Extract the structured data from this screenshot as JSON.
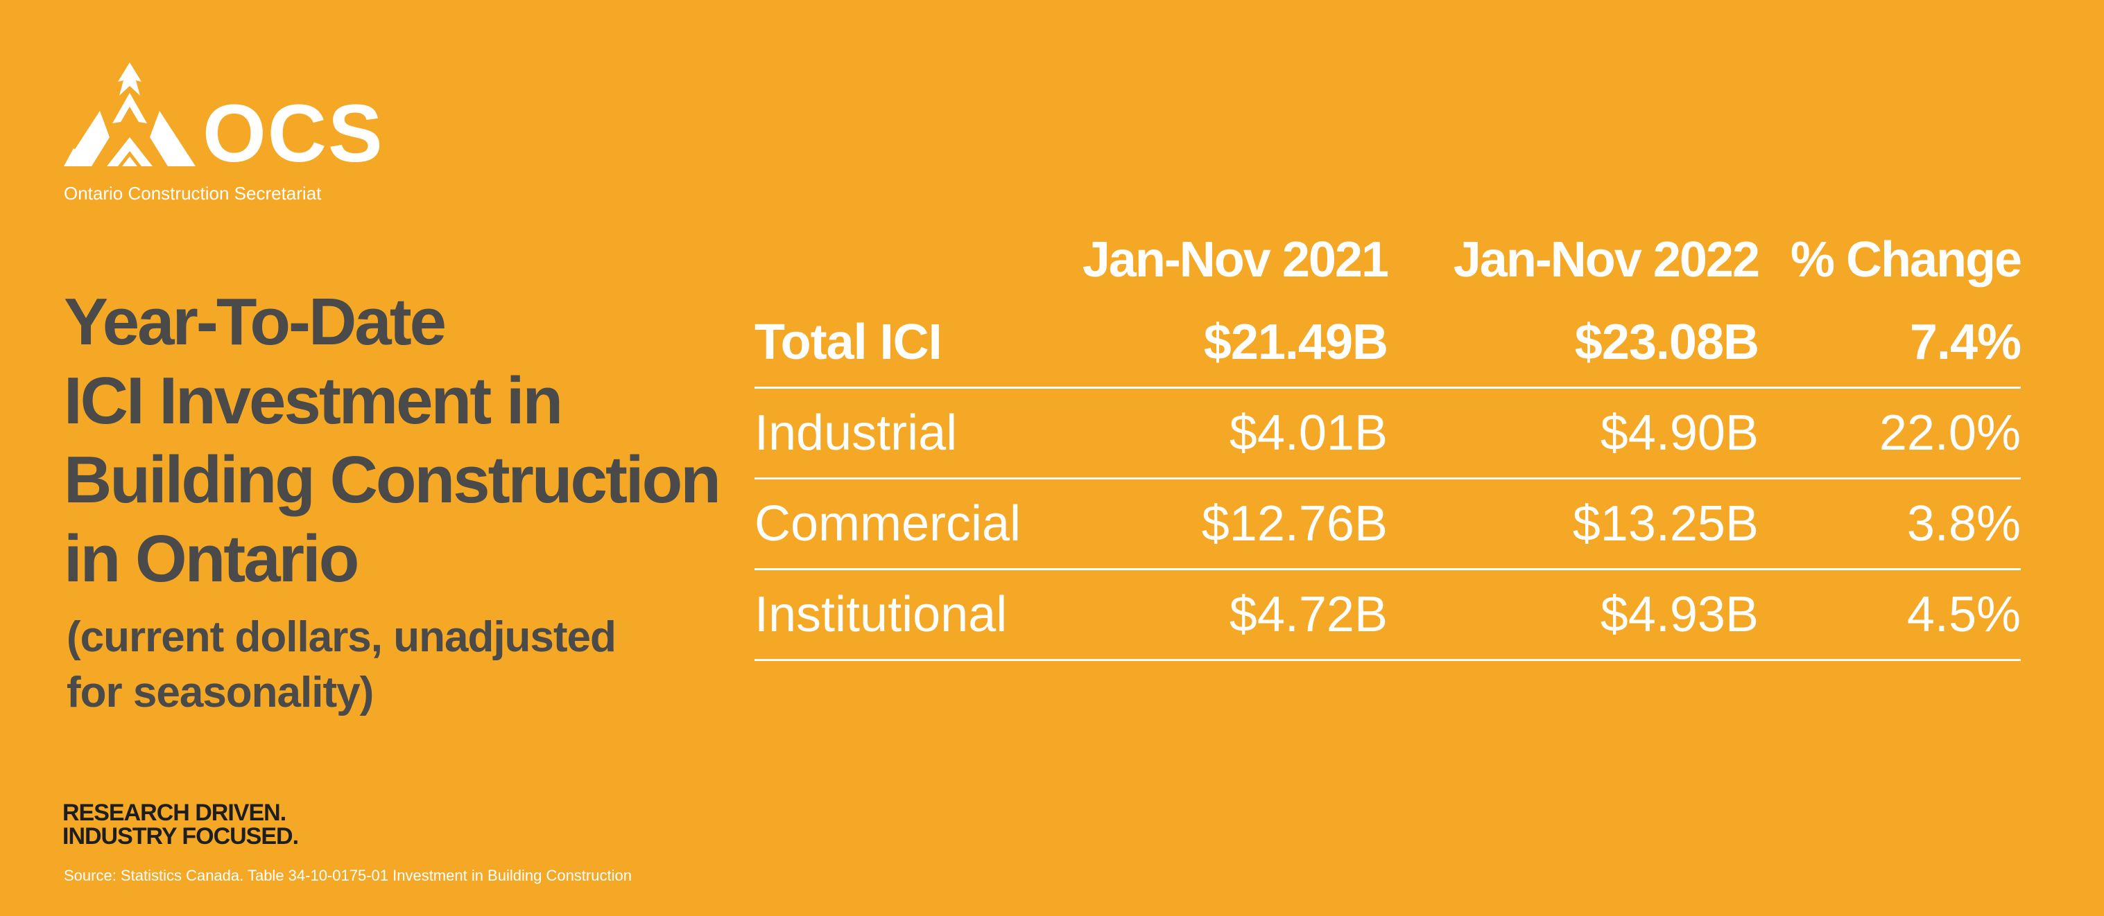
{
  "brand": {
    "logo_text": "OCS",
    "logo_subtitle": "Ontario Construction Secretariat",
    "background_color": "#F4A825",
    "text_dark_color": "#4A4A4A",
    "text_light_color": "#FFFFFF",
    "logo_icon": "ocs-flame-triangle-icon"
  },
  "title_lines": [
    "Year-To-Date",
    "ICI Investment in",
    "Building Construction",
    "in Ontario"
  ],
  "subtitle_lines": [
    "(current dollars, unadjusted",
    "for seasonality)"
  ],
  "tagline_lines": [
    "RESEARCH DRIVEN.",
    "INDUSTRY FOCUSED."
  ],
  "source": "Source:  Statistics Canada. Table 34-10-0175-01  Investment in Building Construction",
  "chart_data": {
    "type": "table",
    "columns": [
      "",
      "Jan-Nov 2021",
      "Jan-Nov 2022",
      "% Change"
    ],
    "rows": [
      {
        "label": "Total ICI",
        "jan_nov_2021": "$21.49B",
        "jan_nov_2022": "$23.08B",
        "pct_change": "7.4%"
      },
      {
        "label": "Industrial",
        "jan_nov_2021": "$4.01B",
        "jan_nov_2022": "$4.90B",
        "pct_change": "22.0%"
      },
      {
        "label": "Commercial",
        "jan_nov_2021": "$12.76B",
        "jan_nov_2022": "$13.25B",
        "pct_change": "3.8%"
      },
      {
        "label": "Institutional",
        "jan_nov_2021": "$4.72B",
        "jan_nov_2022": "$4.93B",
        "pct_change": "4.5%"
      }
    ]
  }
}
